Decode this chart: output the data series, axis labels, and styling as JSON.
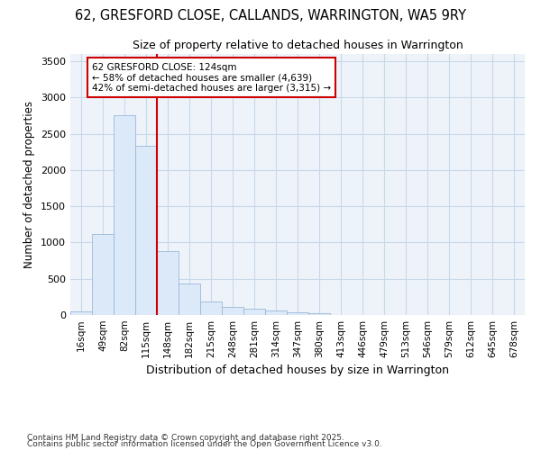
{
  "title1": "62, GRESFORD CLOSE, CALLANDS, WARRINGTON, WA5 9RY",
  "title2": "Size of property relative to detached houses in Warrington",
  "xlabel": "Distribution of detached houses by size in Warrington",
  "ylabel": "Number of detached properties",
  "bar_color": "#dce9f8",
  "bar_edge_color": "#9ab8d8",
  "grid_color": "#c8d8e8",
  "plot_bg_color": "#eef3fa",
  "fig_bg_color": "#ffffff",
  "categories": [
    "16sqm",
    "49sqm",
    "82sqm",
    "115sqm",
    "148sqm",
    "182sqm",
    "215sqm",
    "248sqm",
    "281sqm",
    "314sqm",
    "347sqm",
    "380sqm",
    "413sqm",
    "446sqm",
    "479sqm",
    "513sqm",
    "546sqm",
    "579sqm",
    "612sqm",
    "645sqm",
    "678sqm"
  ],
  "values": [
    50,
    1120,
    2760,
    2340,
    880,
    440,
    190,
    110,
    90,
    60,
    35,
    20,
    5,
    2,
    0,
    0,
    0,
    0,
    0,
    0,
    0
  ],
  "ylim": [
    0,
    3600
  ],
  "yticks": [
    0,
    500,
    1000,
    1500,
    2000,
    2500,
    3000,
    3500
  ],
  "vline_pos": 3.5,
  "vline_color": "#cc0000",
  "annotation_line1": "62 GRESFORD CLOSE: 124sqm",
  "annotation_line2": "← 58% of detached houses are smaller (4,639)",
  "annotation_line3": "42% of semi-detached houses are larger (3,315) →",
  "footnote1": "Contains HM Land Registry data © Crown copyright and database right 2025.",
  "footnote2": "Contains public sector information licensed under the Open Government Licence v3.0."
}
